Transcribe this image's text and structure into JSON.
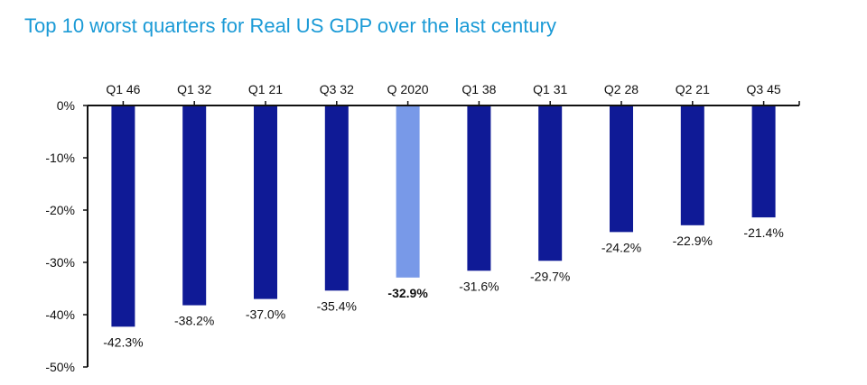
{
  "chart_data": {
    "type": "bar",
    "title": "Top 10 worst quarters for Real US GDP over the last century",
    "categories": [
      "Q1 46",
      "Q1 32",
      "Q1 21",
      "Q3 32",
      "Q 2020",
      "Q1 38",
      "Q1 31",
      "Q2 28",
      "Q2 21",
      "Q3 45"
    ],
    "values": [
      -42.3,
      -38.2,
      -37.0,
      -35.4,
      -32.9,
      -31.6,
      -29.7,
      -24.2,
      -22.9,
      -21.4
    ],
    "value_labels": [
      "-42.3%",
      "-38.2%",
      "-37.0%",
      "-35.4%",
      "-32.9%",
      "-31.6%",
      "-29.7%",
      "-24.2%",
      "-22.9%",
      "-21.4%"
    ],
    "highlight_index": 4,
    "ylim": [
      -50,
      0
    ],
    "yticks": [
      "0%",
      "-10%",
      "-20%",
      "-30%",
      "-40%",
      "-50%"
    ],
    "ytick_values": [
      0,
      -10,
      -20,
      -30,
      -40,
      -50
    ],
    "xlabel": "",
    "ylabel": "",
    "grid": false,
    "legend": "none",
    "colors": {
      "bar": "#0f1a96",
      "highlight": "#7899e8",
      "title": "#1a9ad6"
    }
  }
}
